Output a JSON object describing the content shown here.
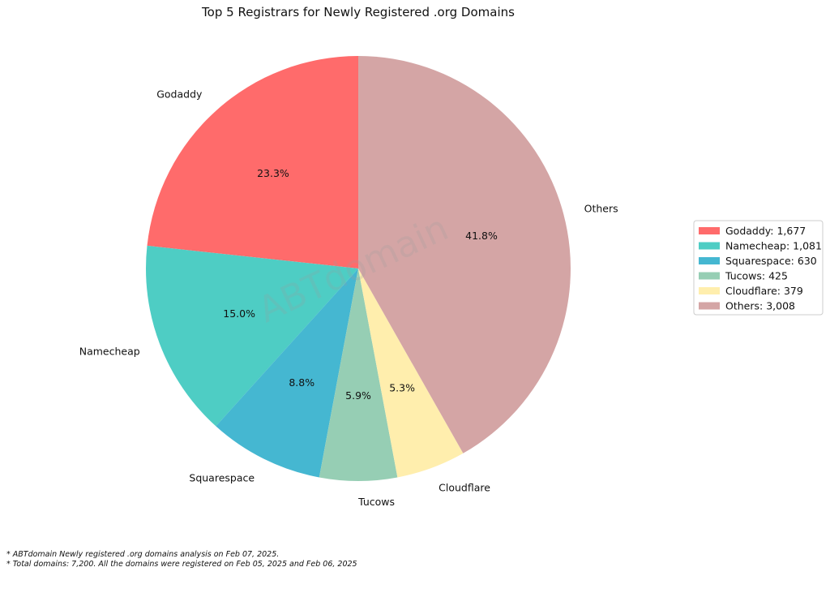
{
  "chart_data": {
    "type": "pie",
    "title": "Top 5 Registrars for Newly Registered .org Domains",
    "slices": [
      {
        "label": "Godaddy",
        "value": 1677,
        "percent_label": "23.3%",
        "legend": "Godaddy: 1,677",
        "color": "#ff6b6b"
      },
      {
        "label": "Namecheap",
        "value": 1081,
        "percent_label": "15.0%",
        "legend": "Namecheap: 1,081",
        "color": "#4ecdc4"
      },
      {
        "label": "Squarespace",
        "value": 630,
        "percent_label": "8.8%",
        "legend": "Squarespace: 630",
        "color": "#45b7d1"
      },
      {
        "label": "Tucows",
        "value": 425,
        "percent_label": "5.9%",
        "legend": "Tucows: 425",
        "color": "#96ceb4"
      },
      {
        "label": "Cloudflare",
        "value": 379,
        "percent_label": "5.3%",
        "legend": "Cloudflare: 379",
        "color": "#ffeead"
      },
      {
        "label": "Others",
        "value": 3008,
        "percent_label": "41.8%",
        "legend": "Others: 3,008",
        "color": "#d4a5a5"
      }
    ],
    "start_angle_deg": 90,
    "direction": "counterclockwise",
    "legend_position": "right",
    "watermark": "ABTdomain"
  },
  "footnotes": [
    "* ABTdomain Newly registered .org domains analysis on Feb 07, 2025.",
    "* Total domains: 7,200. All the domains were registered on Feb 05, 2025 and Feb 06, 2025"
  ]
}
